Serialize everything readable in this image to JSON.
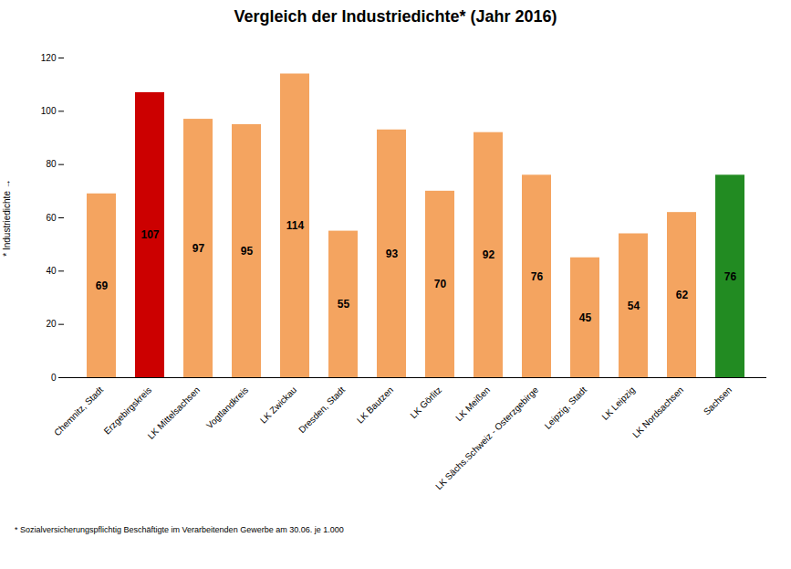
{
  "chart_data": {
    "type": "bar",
    "title": "Vergleich der Industriedichte* (Jahr 2016)",
    "ylabel": "* Industriedichte",
    "footnote": "* Sozialversicherungspflichtig Beschäftigte im Verarbeitenden Gewerbe am 30.06. je 1.000",
    "categories": [
      "Chemnitz, Stadt",
      "Erzgebirgskreis",
      "LK Mittelsachsen",
      "Vogtlandkreis",
      "LK Zwickau",
      "Dresden, Stadt",
      "LK Bautzen",
      "LK Görlitz",
      "LK Meißen",
      "LK Sächs.Schweiz - Osterzgebirge",
      "Leipzig, Stadt",
      "LK Leipzig",
      "LK Nordsachsen",
      "Sachsen"
    ],
    "values": [
      69,
      107,
      97,
      95,
      114,
      55,
      93,
      70,
      92,
      76,
      45,
      54,
      62,
      76
    ],
    "colors": [
      "#F4A460",
      "#CC0000",
      "#F4A460",
      "#F4A460",
      "#F4A460",
      "#F4A460",
      "#F4A460",
      "#F4A460",
      "#F4A460",
      "#F4A460",
      "#F4A460",
      "#F4A460",
      "#F4A460",
      "#228B22"
    ],
    "ylim": [
      0,
      120
    ],
    "yticks": [
      0,
      20,
      40,
      60,
      80,
      100,
      120
    ],
    "data_labels": true,
    "grid": false
  }
}
